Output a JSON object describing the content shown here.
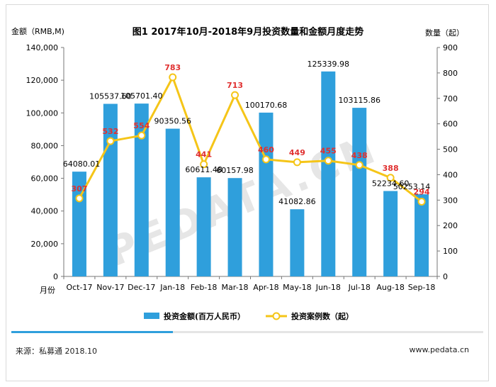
{
  "title": "图1 2017年10月-2018年9月投资数量和金额月度走势",
  "left_axis_title": "金额（RMB,M)",
  "right_axis_title": "数量（起）",
  "x_axis_title": "月份",
  "footer": {
    "source": "来源：私募通 2018.10",
    "website": "www.pedata.cn"
  },
  "watermark": "PEDATA.CN",
  "colors": {
    "bar": "#2f9fdc",
    "line": "#f5c518",
    "count_label": "#e03030"
  },
  "chart_data": {
    "type": "bar",
    "title": "图1 2017年10月-2018年9月投资数量和金额月度走势",
    "categories": [
      "Oct-17",
      "Nov-17",
      "Dec-17",
      "Jan-18",
      "Feb-18",
      "Mar-18",
      "Apr-18",
      "May-18",
      "Jun-18",
      "Jul-18",
      "Aug-18",
      "Sep-18"
    ],
    "series": [
      {
        "name": "投资金额(百万人民币）",
        "type": "bar",
        "axis": "left",
        "values": [
          64080.01,
          105537.6,
          105701.4,
          90350.56,
          60611.48,
          60157.98,
          100170.68,
          41082.86,
          125339.98,
          103115.86,
          52234.6,
          50253.14
        ],
        "labels": [
          "64080.01",
          "105537.60",
          "105701.40",
          "90350.56",
          "60611.48",
          "60157.98",
          "100170.68",
          "41082.86",
          "125339.98",
          "103115.86",
          "52234.60",
          "50253.14"
        ]
      },
      {
        "name": "投资案例数（起）",
        "type": "line",
        "axis": "right",
        "values": [
          307,
          532,
          554,
          783,
          441,
          713,
          460,
          449,
          455,
          438,
          388,
          294
        ],
        "labels": [
          "307",
          "532",
          "554",
          "783",
          "441",
          "713",
          "460",
          "449",
          "455",
          "438",
          "388",
          "294"
        ]
      }
    ],
    "ylim_left": [
      0,
      140000
    ],
    "ylim_right": [
      0,
      900
    ],
    "left_ticks": [
      "0",
      "20,000",
      "40,000",
      "60,000",
      "80,000",
      "100,000",
      "120,000",
      "140,000"
    ],
    "right_ticks": [
      "0",
      "100",
      "200",
      "300",
      "400",
      "500",
      "600",
      "700",
      "800",
      "900"
    ],
    "grid": false,
    "legend_position": "bottom"
  }
}
